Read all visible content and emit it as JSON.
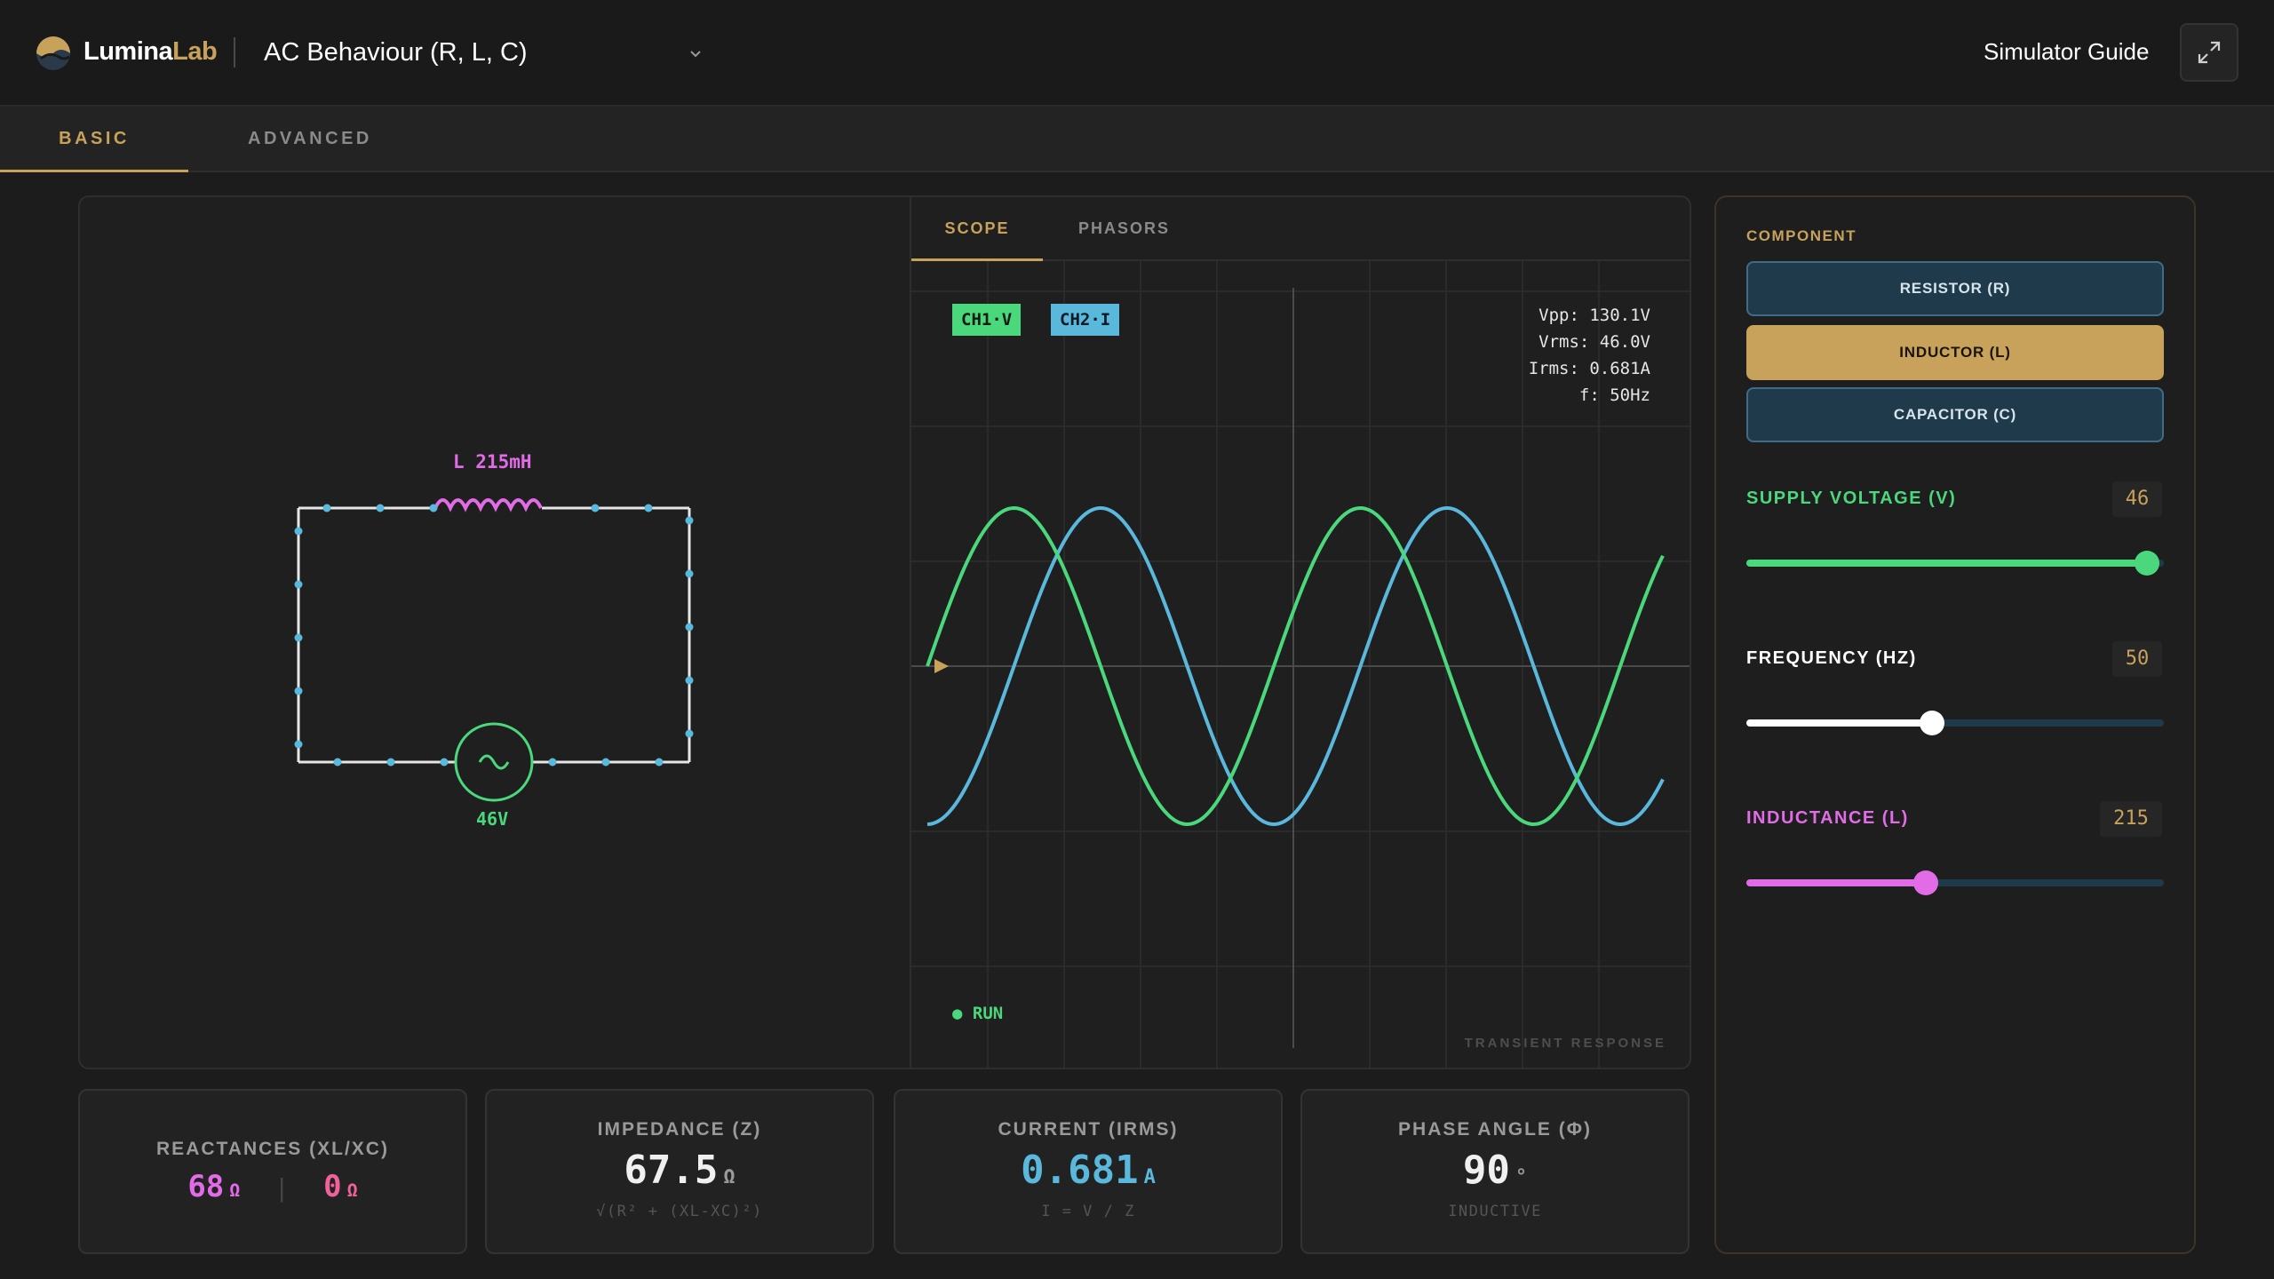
{
  "header": {
    "brand_main": "Lumina",
    "brand_accent": "Lab",
    "sim_title": "AC Behaviour (R, L, C)",
    "guide_label": "Simulator Guide"
  },
  "mode_tabs": [
    "BASIC",
    "ADVANCED"
  ],
  "circuit": {
    "inductor_label": "L 215mH",
    "source_label": "46V"
  },
  "scope": {
    "tabs": [
      "SCOPE",
      "PHASORS"
    ],
    "ch1": "CH1·V",
    "ch2": "CH2·I",
    "vpp": "Vpp: 130.1V",
    "vrms": "Vrms: 46.0V",
    "irms": "Irms: 0.681A",
    "freq": "f: 50Hz",
    "run": "● RUN",
    "footer": "TRANSIENT RESPONSE"
  },
  "sidebar": {
    "component_label": "COMPONENT",
    "components": [
      "RESISTOR (R)",
      "INDUCTOR (L)",
      "CAPACITOR (C)"
    ],
    "selected_component": "INDUCTOR (L)",
    "sliders": [
      {
        "label": "SUPPLY VOLTAGE (V)",
        "value": "46",
        "fraction": 0.96,
        "color": "#4bd87c"
      },
      {
        "label": "FREQUENCY (HZ)",
        "value": "50",
        "fraction": 0.445,
        "color": "#ffffff"
      },
      {
        "label": "INDUCTANCE (L)",
        "value": "215",
        "fraction": 0.43,
        "color": "#e26be8"
      }
    ]
  },
  "metrics": {
    "reactances": {
      "title": "REACTANCES (XL/XC)",
      "xl": "68",
      "xc": "0",
      "unit": "Ω",
      "sep": "|"
    },
    "impedance": {
      "title": "IMPEDANCE (Z)",
      "value": "67.5",
      "unit": "Ω",
      "sub": "√(R² + (XL-XC)²)"
    },
    "current": {
      "title": "CURRENT (IRMS)",
      "value": "0.681",
      "unit": "A",
      "sub": "I = V / Z"
    },
    "phase": {
      "title": "PHASE ANGLE (Φ)",
      "value": "90",
      "unit": "°",
      "sub": "INDUCTIVE"
    }
  },
  "colors": {
    "accent": "#c8a25a",
    "voltage": "#4bd87c",
    "current": "#5ab8dc",
    "inductor": "#e26be8"
  }
}
